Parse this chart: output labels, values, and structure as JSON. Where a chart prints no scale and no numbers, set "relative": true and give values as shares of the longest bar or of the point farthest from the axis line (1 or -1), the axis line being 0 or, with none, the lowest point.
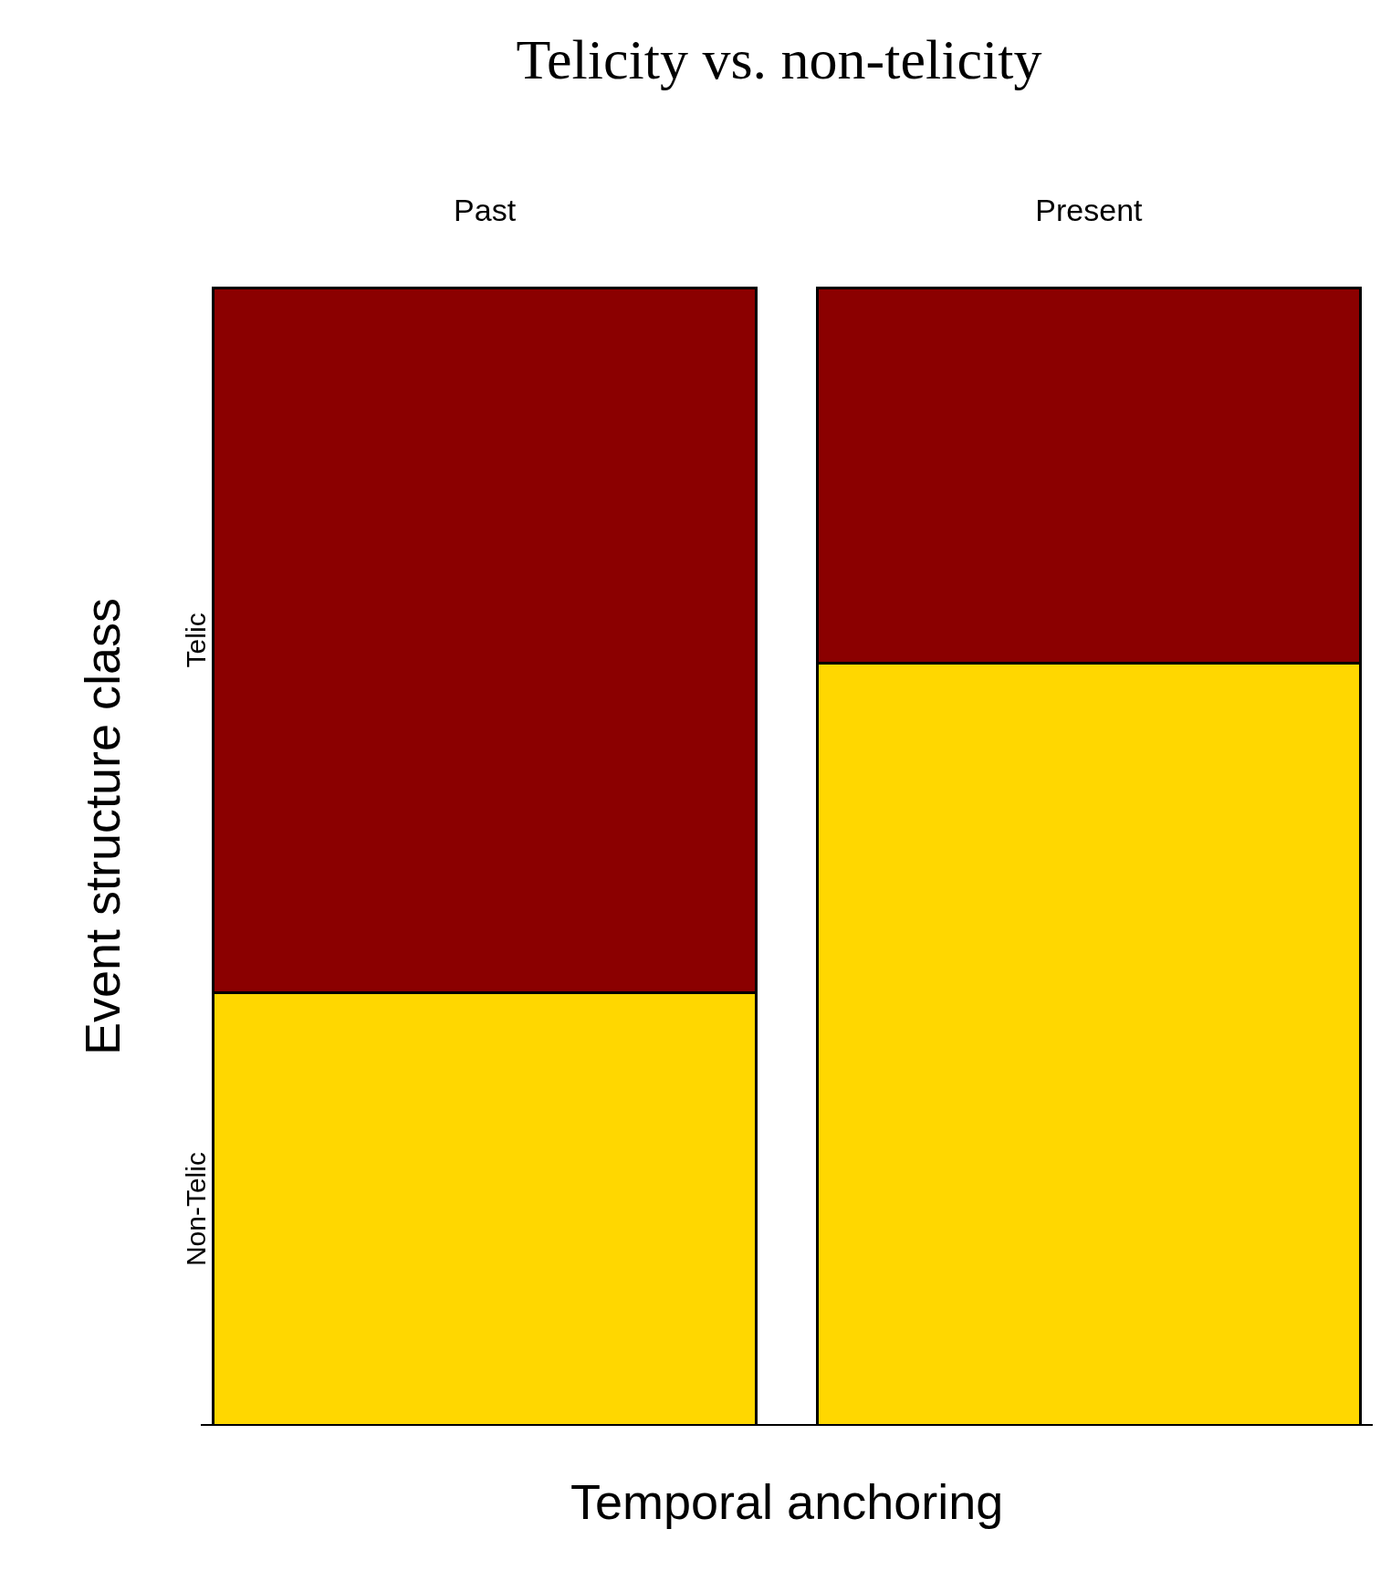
{
  "chart_data": {
    "type": "bar",
    "title": "Telicity vs. non-telicity",
    "xlabel": "Temporal anchoring",
    "ylabel": "Event structure class",
    "categories": [
      "Past",
      "Present"
    ],
    "stacked": true,
    "relative": true,
    "legend": false,
    "grid": false,
    "series": [
      {
        "name": "Non-Telic",
        "color": "#ffd700",
        "values": [
          0.38,
          0.67
        ]
      },
      {
        "name": "Telic",
        "color": "#8b0000",
        "values": [
          0.62,
          0.33
        ]
      }
    ]
  }
}
